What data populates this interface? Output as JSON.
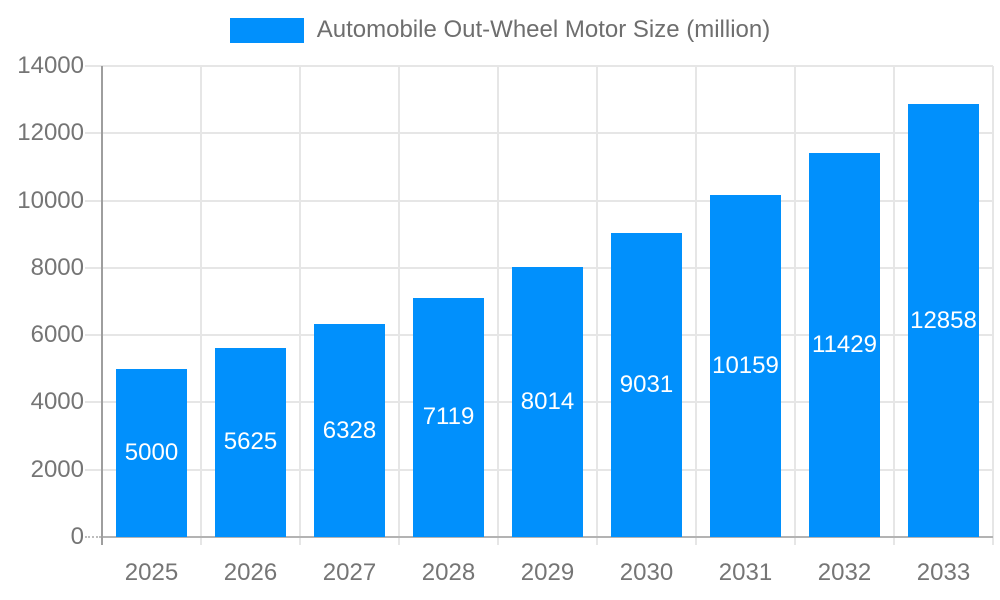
{
  "legend": {
    "label": "Automobile Out-Wheel Motor Size (million)",
    "swatch_color": "#0190fc"
  },
  "chart_data": {
    "type": "bar",
    "title": "Automobile Out-Wheel Motor Size (million)",
    "series_name": "Automobile Out-Wheel Motor Size (million)",
    "categories": [
      "2025",
      "2026",
      "2027",
      "2028",
      "2029",
      "2030",
      "2031",
      "2032",
      "2033"
    ],
    "values": [
      5000,
      5625,
      6328,
      7119,
      8014,
      9031,
      10159,
      11429,
      12858
    ],
    "xlabel": "",
    "ylabel": "",
    "ylim": [
      0,
      14000
    ],
    "yticks": [
      0,
      2000,
      4000,
      6000,
      8000,
      10000,
      12000,
      14000
    ],
    "grid": true,
    "legend_position": "top",
    "data_labels_position": "inside-center"
  },
  "colors": {
    "background": "#ffffff",
    "bar": "#0190fc",
    "gridline": "#e6e6e6",
    "y_axis_line": "#9e9e9e",
    "x_axis_line": "#b3b3b3",
    "axis_label_text": "#757575",
    "legend_text": "#6e6e6e",
    "bar_label_text": "#ffffff"
  }
}
